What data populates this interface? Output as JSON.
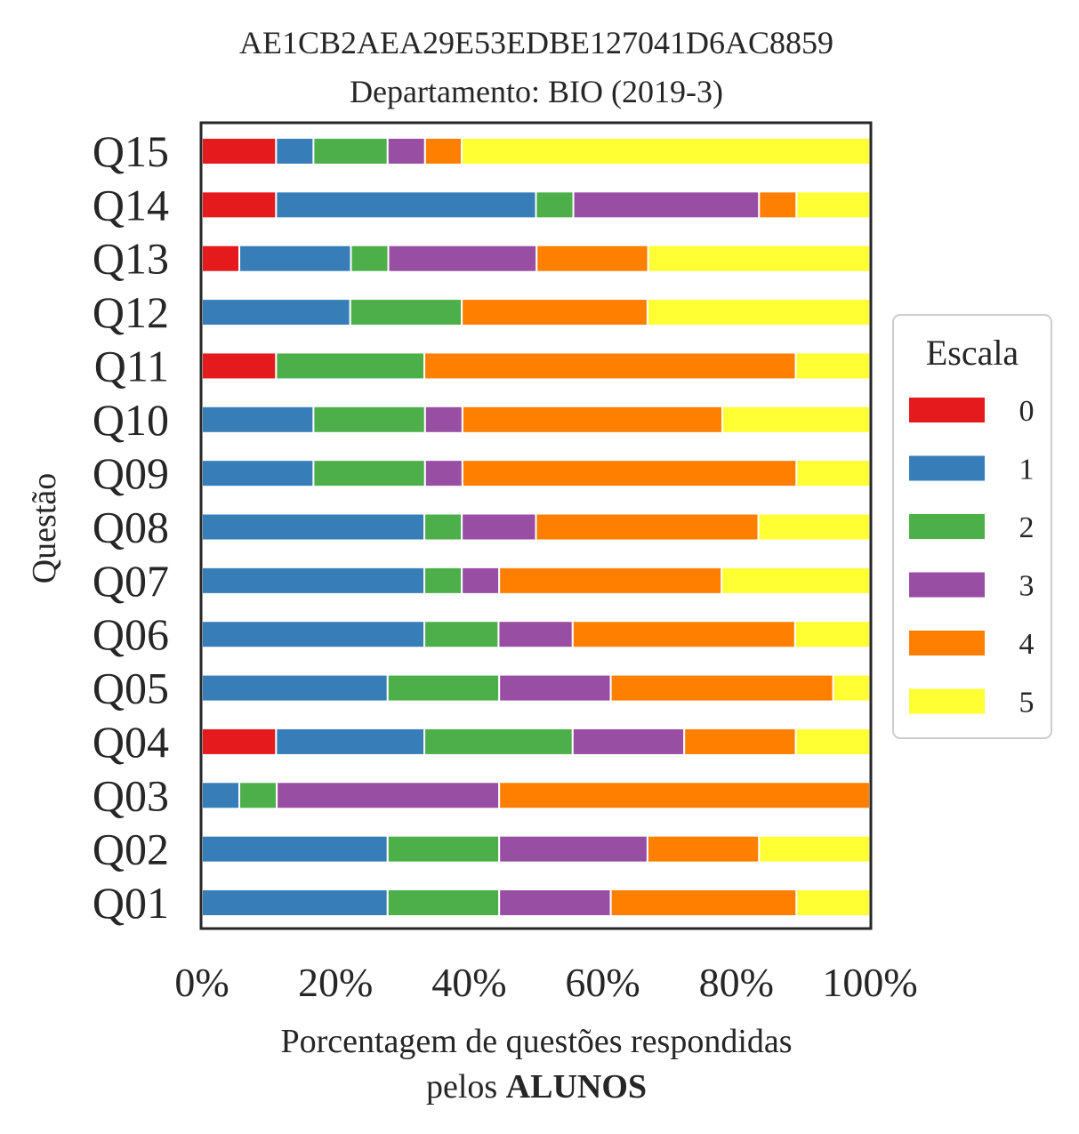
{
  "chart_data": {
    "type": "bar",
    "orientation": "horizontal",
    "stacked": true,
    "title_line1": "AE1CB2AEA29E53EDBE127041D6AC8859",
    "title_line2": "Departamento: BIO (2019-3)",
    "xlabel_line1": "Porcentagem de questões respondidas",
    "xlabel_line2_prefix": "pelos ",
    "xlabel_line2_bold": "ALUNOS",
    "ylabel": "Questão",
    "xlim": [
      0,
      100
    ],
    "xticks": [
      "0%",
      "20%",
      "40%",
      "60%",
      "80%",
      "100%"
    ],
    "xtick_values": [
      0,
      20,
      40,
      60,
      80,
      100
    ],
    "grid": false,
    "legend_position": "right",
    "legend_title": "Escala",
    "categories": [
      "Q01",
      "Q02",
      "Q03",
      "Q04",
      "Q05",
      "Q06",
      "Q07",
      "Q08",
      "Q09",
      "Q10",
      "Q11",
      "Q12",
      "Q13",
      "Q14",
      "Q15"
    ],
    "series": [
      {
        "name": "0",
        "color": "#e41a1c",
        "values": [
          0,
          0,
          0,
          11.1,
          0,
          0,
          0,
          0,
          0,
          0,
          11.1,
          0,
          5.6,
          11.1,
          11.1
        ]
      },
      {
        "name": "1",
        "color": "#377eb8",
        "values": [
          27.8,
          27.8,
          5.6,
          22.2,
          27.8,
          33.3,
          33.3,
          33.3,
          16.7,
          16.7,
          0,
          22.2,
          16.7,
          38.9,
          5.6
        ]
      },
      {
        "name": "2",
        "color": "#4daf4a",
        "values": [
          16.7,
          16.7,
          5.6,
          22.2,
          16.7,
          11.1,
          5.6,
          5.6,
          16.7,
          16.7,
          22.2,
          16.7,
          5.6,
          5.6,
          11.1
        ]
      },
      {
        "name": "3",
        "color": "#984ea3",
        "values": [
          16.7,
          22.2,
          33.3,
          16.7,
          16.7,
          11.1,
          5.6,
          11.1,
          5.6,
          5.6,
          0,
          0,
          22.2,
          27.8,
          5.6
        ]
      },
      {
        "name": "4",
        "color": "#ff7f00",
        "values": [
          27.8,
          16.7,
          55.5,
          16.7,
          33.3,
          33.3,
          33.3,
          33.3,
          50.0,
          38.9,
          55.6,
          27.8,
          16.7,
          5.6,
          5.5
        ]
      },
      {
        "name": "5",
        "color": "#ffff33",
        "values": [
          11.0,
          16.6,
          0,
          11.1,
          5.5,
          11.2,
          22.2,
          16.7,
          11.0,
          22.1,
          11.1,
          33.3,
          33.2,
          11.0,
          61.1
        ]
      }
    ]
  }
}
